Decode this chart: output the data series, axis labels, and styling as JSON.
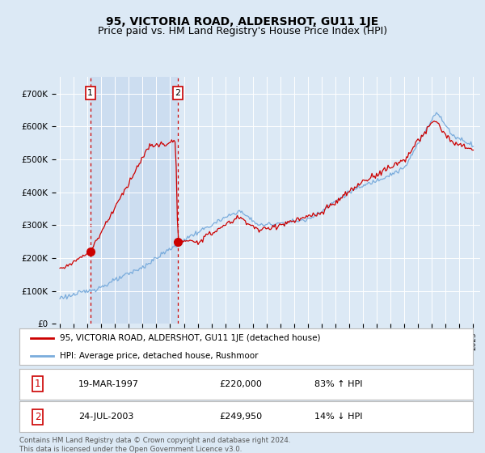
{
  "title": "95, VICTORIA ROAD, ALDERSHOT, GU11 1JE",
  "subtitle": "Price paid vs. HM Land Registry's House Price Index (HPI)",
  "background_color": "#dce9f5",
  "plot_bg_color": "#dce9f5",
  "shade_color": "#ccddf0",
  "ylim": [
    0,
    750000
  ],
  "yticks": [
    0,
    100000,
    200000,
    300000,
    400000,
    500000,
    600000,
    700000
  ],
  "ytick_labels": [
    "£0",
    "£100K",
    "£200K",
    "£300K",
    "£400K",
    "£500K",
    "£600K",
    "£700K"
  ],
  "sale1_date": 1997.21,
  "sale1_price": 220000,
  "sale1_label": "1",
  "sale2_date": 2003.56,
  "sale2_price": 249950,
  "sale2_label": "2",
  "red_line_color": "#cc0000",
  "blue_line_color": "#7aacdc",
  "marker_color": "#cc0000",
  "dashed_line_color": "#cc0000",
  "legend_label_red": "95, VICTORIA ROAD, ALDERSHOT, GU11 1JE (detached house)",
  "legend_label_blue": "HPI: Average price, detached house, Rushmoor",
  "table_row1": [
    "1",
    "19-MAR-1997",
    "£220,000",
    "83% ↑ HPI"
  ],
  "table_row2": [
    "2",
    "24-JUL-2003",
    "£249,950",
    "14% ↓ HPI"
  ],
  "footer": "Contains HM Land Registry data © Crown copyright and database right 2024.\nThis data is licensed under the Open Government Licence v3.0.",
  "title_fontsize": 10,
  "subtitle_fontsize": 9
}
